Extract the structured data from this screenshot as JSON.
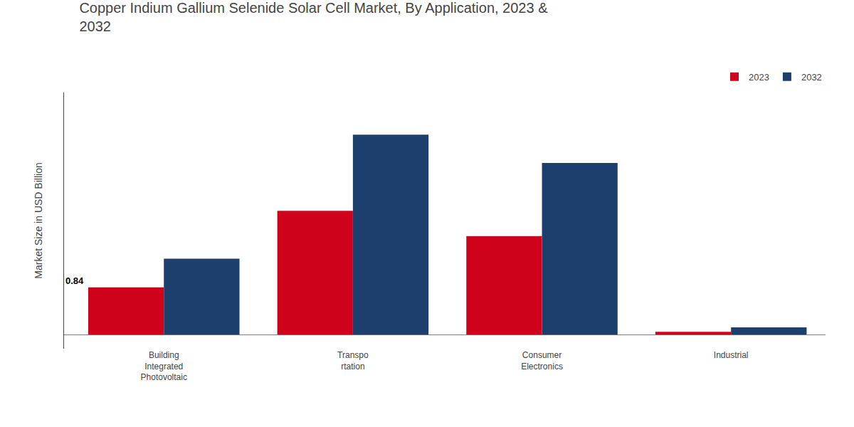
{
  "chart_data": {
    "type": "bar",
    "title": "Copper Indium Gallium Selenide Solar Cell Market, By Application, 2023 &\n2032",
    "ylabel": "Market Size in USD Billion",
    "categories": [
      "Building\nIntegrated\nPhotovoltaic",
      "Transpo\nrtation",
      "Consumer\nElectronics",
      "Industrial"
    ],
    "series": [
      {
        "name": "2023",
        "color": "#d0021b",
        "values": [
          0.84,
          2.2,
          1.75,
          0.05
        ]
      },
      {
        "name": "2032",
        "color": "#1c3f6e",
        "values": [
          1.35,
          3.55,
          3.05,
          0.13
        ]
      }
    ],
    "ylim": [
      -0.25,
      4.3
    ],
    "tick_labels": "x",
    "grid": false,
    "legend": "upper right",
    "data_labels": false,
    "annotations": [
      {
        "text": "0.84",
        "series": "2023",
        "category": "Building\nIntegrated\nPhotovoltaic"
      }
    ]
  }
}
